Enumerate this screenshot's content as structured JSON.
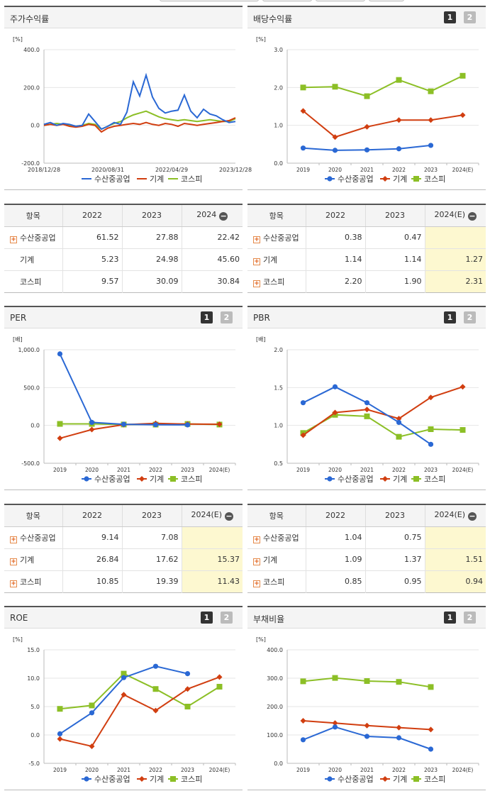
{
  "colors": {
    "samsung": "#2a68d4",
    "machine": "#d13e10",
    "kospi": "#8cbf26"
  },
  "legend": [
    "수산중공업",
    "기계",
    "코스피"
  ],
  "charts": [
    {
      "key": "price",
      "title": "주가수익률",
      "tabs": [],
      "chart_data": {
        "type": "line",
        "unit": "[%]",
        "y_ticks": [
          "400.0",
          "200.0",
          "0.0",
          "-200.0"
        ],
        "ylim": [
          -200,
          400
        ],
        "x_ticks": [
          "2018/12/28",
          "2020/08/31",
          "2022/04/29",
          "2023/12/28"
        ],
        "x_index": [
          0,
          0.2,
          0.4,
          0.6,
          0.8,
          1.0,
          1.2,
          1.4,
          1.6,
          1.8,
          2.0,
          2.2,
          2.4,
          2.6,
          2.8,
          3.0,
          3.2,
          3.4,
          3.6,
          3.8,
          4.0,
          4.2,
          4.4,
          4.6,
          4.8,
          5.0,
          5.2,
          5.4,
          5.6,
          5.8,
          6.0
        ],
        "series": [
          {
            "name": "수산중공업",
            "values": [
              5,
              15,
              0,
              10,
              5,
              -5,
              0,
              60,
              20,
              -20,
              -5,
              15,
              5,
              70,
              230,
              155,
              265,
              150,
              90,
              65,
              75,
              80,
              160,
              75,
              40,
              85,
              60,
              50,
              30,
              15,
              20
            ]
          },
          {
            "name": "기계",
            "values": [
              0,
              5,
              0,
              5,
              -5,
              -10,
              -5,
              5,
              0,
              -35,
              -15,
              -5,
              0,
              5,
              10,
              5,
              15,
              5,
              0,
              10,
              5,
              -5,
              10,
              5,
              0,
              5,
              10,
              15,
              20,
              25,
              40
            ]
          },
          {
            "name": "코스피",
            "values": [
              0,
              5,
              10,
              5,
              0,
              -5,
              0,
              10,
              5,
              -20,
              -5,
              10,
              20,
              40,
              55,
              65,
              75,
              60,
              45,
              35,
              30,
              25,
              30,
              25,
              20,
              25,
              30,
              25,
              20,
              20,
              35
            ]
          }
        ]
      }
    },
    {
      "key": "div",
      "title": "배당수익률",
      "tabs": [
        "1",
        "2"
      ],
      "chart_data": {
        "type": "line",
        "unit": "[%]",
        "y_ticks": [
          "3.0",
          "2.0",
          "1.0",
          "0.0"
        ],
        "ylim": [
          0,
          3
        ],
        "x_ticks": [
          "2019",
          "2020",
          "2021",
          "2022",
          "2023",
          "2024(E)"
        ],
        "series": [
          {
            "name": "수산중공업",
            "values": [
              0.4,
              0.34,
              0.35,
              0.38,
              0.47,
              null
            ]
          },
          {
            "name": "기계",
            "values": [
              1.38,
              0.69,
              0.96,
              1.14,
              1.14,
              1.27
            ]
          },
          {
            "name": "코스피",
            "values": [
              2.0,
              2.02,
              1.77,
              2.2,
              1.9,
              2.31
            ]
          }
        ]
      }
    },
    {
      "key": "per",
      "title": "PER",
      "tabs": [
        "1",
        "2"
      ],
      "chart_data": {
        "type": "line",
        "unit": "[배]",
        "y_ticks": [
          "1,000.0",
          "500.0",
          "0.0",
          "-500.0"
        ],
        "ylim": [
          -500,
          1000
        ],
        "x_ticks": [
          "2019",
          "2020",
          "2021",
          "2022",
          "2023",
          "2024(E)"
        ],
        "series": [
          {
            "name": "수산중공업",
            "values": [
              945,
              40,
              15,
              9.14,
              7.08,
              null
            ]
          },
          {
            "name": "기계",
            "values": [
              -170,
              -55,
              10,
              26.84,
              17.62,
              15.37
            ]
          },
          {
            "name": "코스피",
            "values": [
              20,
              20,
              12,
              10.85,
              19.39,
              11.43
            ]
          }
        ]
      }
    },
    {
      "key": "pbr",
      "title": "PBR",
      "tabs": [
        "1",
        "2"
      ],
      "chart_data": {
        "type": "line",
        "unit": "[배]",
        "y_ticks": [
          "2.0",
          "1.5",
          "1.0",
          "0.5"
        ],
        "ylim": [
          0.5,
          2
        ],
        "x_ticks": [
          "2019",
          "2020",
          "2021",
          "2022",
          "2023",
          "2024(E)"
        ],
        "series": [
          {
            "name": "수산중공업",
            "values": [
              1.3,
              1.51,
              1.3,
              1.04,
              0.75,
              null
            ]
          },
          {
            "name": "기계",
            "values": [
              0.87,
              1.17,
              1.21,
              1.09,
              1.37,
              1.51
            ]
          },
          {
            "name": "코스피",
            "values": [
              0.9,
              1.14,
              1.12,
              0.85,
              0.95,
              0.94
            ]
          }
        ]
      }
    },
    {
      "key": "roe",
      "title": "ROE",
      "tabs": [
        "1",
        "2"
      ],
      "chart_data": {
        "type": "line",
        "unit": "[%]",
        "y_ticks": [
          "15.0",
          "10.0",
          "5.0",
          "0.0",
          "-5.0"
        ],
        "ylim": [
          -5,
          15
        ],
        "x_ticks": [
          "2019",
          "2020",
          "2021",
          "2022",
          "2023",
          "2024(E)"
        ],
        "series": [
          {
            "name": "수산중공업",
            "values": [
              0.2,
              3.9,
              10.1,
              12.1,
              10.8,
              null
            ]
          },
          {
            "name": "기계",
            "values": [
              -0.7,
              -2.0,
              7.1,
              4.3,
              8.1,
              10.2
            ]
          },
          {
            "name": "코스피",
            "values": [
              4.6,
              5.2,
              10.8,
              8.1,
              5.0,
              8.5
            ]
          }
        ]
      }
    },
    {
      "key": "debt",
      "title": "부채비율",
      "tabs": [
        "1",
        "2"
      ],
      "chart_data": {
        "type": "line",
        "unit": "[%]",
        "y_ticks": [
          "400.0",
          "300.0",
          "200.0",
          "100.0",
          "0.0"
        ],
        "ylim": [
          0,
          400
        ],
        "x_ticks": [
          "2019",
          "2020",
          "2021",
          "2022",
          "2023",
          "2024(E)"
        ],
        "series": [
          {
            "name": "수산중공업",
            "values": [
              83,
              128,
              95,
              90,
              50,
              null
            ]
          },
          {
            "name": "기계",
            "values": [
              150,
              142,
              133,
              126,
              119,
              null
            ]
          },
          {
            "name": "코스피",
            "values": [
              289,
              301,
              290,
              287,
              269,
              null
            ]
          }
        ]
      }
    }
  ],
  "tables": [
    {
      "key": "price",
      "header": [
        "항목",
        "2022",
        "2023",
        "2024"
      ],
      "minus": "−",
      "highlight_last": false,
      "rows": [
        {
          "label": "수산중공업",
          "plus": "+",
          "values": [
            "61.52",
            "27.88",
            "22.42"
          ]
        },
        {
          "label": "기계",
          "plus": "",
          "values": [
            "5.23",
            "24.98",
            "45.60"
          ]
        },
        {
          "label": "코스피",
          "plus": "",
          "values": [
            "9.57",
            "30.09",
            "30.84"
          ]
        }
      ]
    },
    {
      "key": "div",
      "header": [
        "항목",
        "2022",
        "2023",
        "2024(E)"
      ],
      "minus": "−",
      "highlight_last": true,
      "rows": [
        {
          "label": "수산중공업",
          "plus": "+",
          "values": [
            "0.38",
            "0.47",
            ""
          ]
        },
        {
          "label": "기계",
          "plus": "+",
          "values": [
            "1.14",
            "1.14",
            "1.27"
          ]
        },
        {
          "label": "코스피",
          "plus": "+",
          "values": [
            "2.20",
            "1.90",
            "2.31"
          ]
        }
      ]
    },
    {
      "key": "per",
      "header": [
        "항목",
        "2022",
        "2023",
        "2024(E)"
      ],
      "minus": "−",
      "highlight_last": true,
      "rows": [
        {
          "label": "수산중공업",
          "plus": "+",
          "values": [
            "9.14",
            "7.08",
            ""
          ]
        },
        {
          "label": "기계",
          "plus": "+",
          "values": [
            "26.84",
            "17.62",
            "15.37"
          ]
        },
        {
          "label": "코스피",
          "plus": "+",
          "values": [
            "10.85",
            "19.39",
            "11.43"
          ]
        }
      ]
    },
    {
      "key": "pbr",
      "header": [
        "항목",
        "2022",
        "2023",
        "2024(E)"
      ],
      "minus": "−",
      "highlight_last": true,
      "rows": [
        {
          "label": "수산중공업",
          "plus": "+",
          "values": [
            "1.04",
            "0.75",
            ""
          ]
        },
        {
          "label": "기계",
          "plus": "+",
          "values": [
            "1.09",
            "1.37",
            "1.51"
          ]
        },
        {
          "label": "코스피",
          "plus": "+",
          "values": [
            "0.85",
            "0.95",
            "0.94"
          ]
        }
      ]
    }
  ]
}
